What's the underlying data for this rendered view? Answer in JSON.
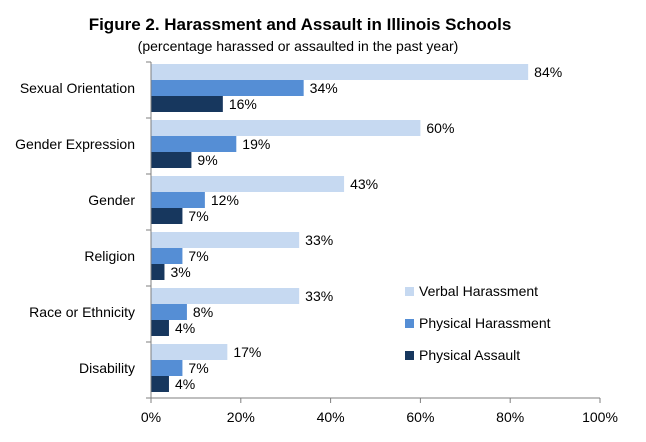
{
  "chart_data": {
    "type": "bar",
    "orientation": "horizontal",
    "title": "Figure 2. Harassment and Assault in Illinois Schools",
    "subtitle": "(percentage harassed or assaulted in the past year)",
    "xlabel": "",
    "ylabel": "",
    "categories": [
      "Sexual Orientation",
      "Gender Expression",
      "Gender",
      "Religion",
      "Race or Ethnicity",
      "Disability"
    ],
    "series": [
      {
        "name": "Verbal Harassment",
        "color": "#c6d9f1",
        "values": [
          84,
          60,
          43,
          33,
          33,
          17
        ]
      },
      {
        "name": "Physical Harassment",
        "color": "#558ed5",
        "values": [
          34,
          19,
          12,
          7,
          8,
          7
        ]
      },
      {
        "name": "Physical Assault",
        "color": "#17375e",
        "values": [
          16,
          9,
          7,
          3,
          4,
          4
        ]
      }
    ],
    "value_suffix": "%",
    "xlim": [
      0,
      100
    ],
    "xticks": [
      0,
      20,
      40,
      60,
      80,
      100
    ],
    "xtick_labels": [
      "0%",
      "20%",
      "40%",
      "60%",
      "80%",
      "100%"
    ],
    "grid": false,
    "legend_position": "bottom-right"
  }
}
